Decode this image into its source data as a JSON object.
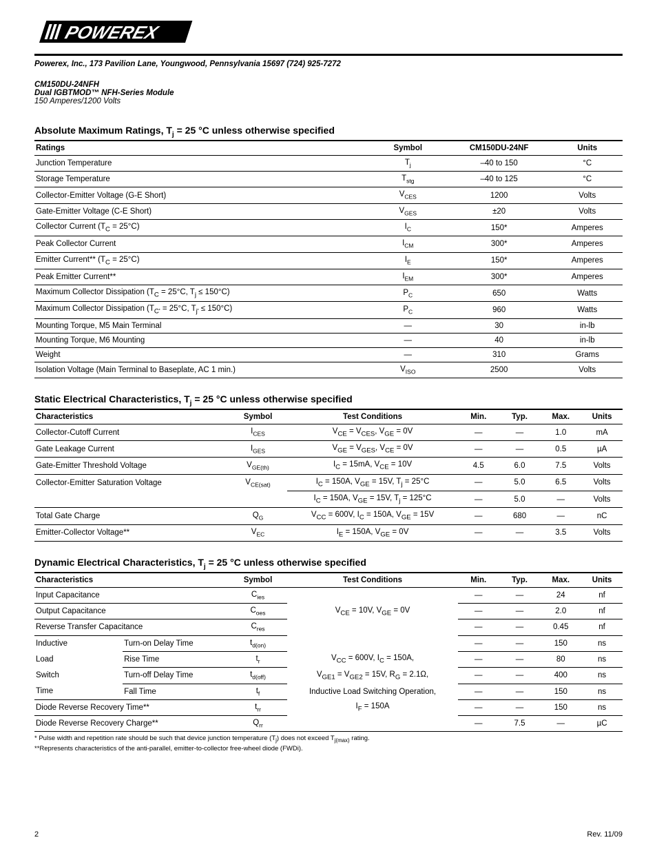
{
  "header": {
    "company_line": "Powerex, Inc., 173 Pavilion Lane, Youngwood, Pennsylvania  15697   (724) 925-7272",
    "product_code": "CM150DU-24NFH",
    "product_desc": "Dual IGBTMOD™ NFH-Series Module",
    "product_spec": "150 Amperes/1200 Volts"
  },
  "abs_max": {
    "title_prefix": "Absolute Maximum Ratings, T",
    "title_sub": "j",
    "title_suffix": " = 25 °C unless otherwise specified",
    "columns": {
      "c1": "Ratings",
      "c2": "Symbol",
      "c3": "CM150DU-24NF",
      "c4": "Units"
    },
    "rows": [
      {
        "rating": "Junction Temperature",
        "sym": "T",
        "sub": "j",
        "val": "–40 to 150",
        "unit": "°C"
      },
      {
        "rating": "Storage Temperature",
        "sym": "T",
        "sub": "stg",
        "val": "–40 to 125",
        "unit": "°C"
      },
      {
        "rating": "Collector-Emitter Voltage (G-E Short)",
        "sym": "V",
        "sub": "CES",
        "val": "1200",
        "unit": "Volts"
      },
      {
        "rating": "Gate-Emitter Voltage (C-E Short)",
        "sym": "V",
        "sub": "GES",
        "val": "±20",
        "unit": "Volts"
      },
      {
        "rating_html": "Collector Current (T<sub>C</sub> = 25°C)",
        "sym": "I",
        "sub": "C",
        "val": "150*",
        "unit": "Amperes"
      },
      {
        "rating": "Peak Collector Current",
        "sym": "I",
        "sub": "CM",
        "val": "300*",
        "unit": "Amperes"
      },
      {
        "rating_html": "Emitter Current** (T<sub>C</sub> = 25°C)",
        "sym": "I",
        "sub": "E",
        "val": "150*",
        "unit": "Amperes"
      },
      {
        "rating": "Peak Emitter Current**",
        "sym": "I",
        "sub": "EM",
        "val": "300*",
        "unit": "Amperes"
      },
      {
        "rating_html": "Maximum Collector Dissipation (T<sub>C</sub> = 25°C, T<sub>j</sub> ≤ 150°C)",
        "sym": "P",
        "sub": "C",
        "val": "650",
        "unit": "Watts"
      },
      {
        "rating_html": "Maximum Collector Dissipation (T<sub>C'</sub> = 25°C, T<sub>j'</sub> ≤ 150°C)",
        "sym": "P",
        "sub": "C",
        "val": "960",
        "unit": "Watts"
      },
      {
        "rating": "Mounting Torque, M5 Main Terminal",
        "sym": "—",
        "sub": "",
        "val": "30",
        "unit": "in-lb"
      },
      {
        "rating": "Mounting Torque, M6 Mounting",
        "sym": "—",
        "sub": "",
        "val": "40",
        "unit": "in-lb"
      },
      {
        "rating": "Weight",
        "sym": "—",
        "sub": "",
        "val": "310",
        "unit": "Grams"
      },
      {
        "rating": "Isolation Voltage (Main Terminal to Baseplate, AC 1 min.)",
        "sym": "V",
        "sub": "ISO",
        "val": "2500",
        "unit": "Volts"
      }
    ]
  },
  "static": {
    "title_prefix": "Static Electrical Characteristics, T",
    "title_sub": "j",
    "title_suffix": " = 25 °C unless otherwise specified",
    "columns": {
      "c1": "Characteristics",
      "c2": "Symbol",
      "c3": "Test Conditions",
      "c4": "Min.",
      "c5": "Typ.",
      "c6": "Max.",
      "c7": "Units"
    },
    "rows": [
      {
        "char": "Collector-Cutoff Current",
        "sym": "I",
        "sub": "CES",
        "cond_html": "V<sub>CE</sub> = V<sub>CES</sub>, V<sub>GE</sub> = 0V",
        "min": "—",
        "typ": "—",
        "max": "1.0",
        "unit": "mA"
      },
      {
        "char": "Gate Leakage Current",
        "sym": "I",
        "sub": "GES",
        "cond_html": "V<sub>GE</sub> = V<sub>GES</sub>, V<sub>CE</sub> = 0V",
        "min": "—",
        "typ": "—",
        "max": "0.5",
        "unit": "µA"
      },
      {
        "char": "Gate-Emitter Threshold Voltage",
        "sym": "V",
        "sub": "GE(th)",
        "cond_html": "I<sub>C</sub> = 15mA, V<sub>CE</sub> = 10V",
        "min": "4.5",
        "typ": "6.0",
        "max": "7.5",
        "unit": "Volts"
      },
      {
        "char": "Collector-Emitter Saturation Voltage",
        "sym": "V",
        "sub": "CE(sat)",
        "cond_html": "I<sub>C</sub> = 150A, V<sub>GE</sub> = 15V, T<sub>j</sub> = 25°C",
        "min": "—",
        "typ": "5.0",
        "max": "6.5",
        "unit": "Volts"
      },
      {
        "char": "",
        "sym": "",
        "sub": "",
        "cond_html": "I<sub>C</sub> = 150A, V<sub>GE</sub> = 15V, T<sub>j</sub> = 125°C",
        "min": "—",
        "typ": "5.0",
        "max": "—",
        "unit": "Volts"
      },
      {
        "char": "Total Gate Charge",
        "sym": "Q",
        "sub": "G",
        "cond_html": "V<sub>CC</sub> = 600V, I<sub>C</sub> = 150A, V<sub>GE</sub> = 15V",
        "min": "—",
        "typ": "680",
        "max": "—",
        "unit": "nC"
      },
      {
        "char": "Emitter-Collector Voltage**",
        "sym": "V",
        "sub": "EC",
        "cond_html": "I<sub>E</sub> = 150A, V<sub>GE</sub> = 0V",
        "min": "—",
        "typ": "—",
        "max": "3.5",
        "unit": "Volts"
      }
    ]
  },
  "dynamic": {
    "title_prefix": "Dynamic Electrical Characteristics, T",
    "title_sub": "j",
    "title_suffix": " = 25 °C unless otherwise specified",
    "columns": {
      "c1": "Characteristics",
      "c2": "Symbol",
      "c3": "Test Conditions",
      "c4": "Min.",
      "c5": "Typ.",
      "c6": "Max.",
      "c7": "Units"
    },
    "cond1_html": "V<sub>CE</sub> = 10V, V<sub>GE</sub> = 0V",
    "cond2a_html": "V<sub>CC</sub> = 600V, I<sub>C</sub> = 150A,",
    "cond2b_html": "V<sub>GE1</sub> = V<sub>GE2</sub> = 15V, R<sub>G</sub> = 2.1Ω,",
    "cond2c": "Inductive Load Switching Operation,",
    "cond2d_html": "I<sub>F</sub> = 150A",
    "rows": {
      "r1": {
        "char": "Input Capacitance",
        "sym": "C",
        "sub": "ies",
        "min": "—",
        "typ": "—",
        "max": "24",
        "unit": "nf"
      },
      "r2": {
        "char": "Output Capacitance",
        "sym": "C",
        "sub": "oes",
        "min": "—",
        "typ": "—",
        "max": "2.0",
        "unit": "nf"
      },
      "r3": {
        "char": "Reverse Transfer Capacitance",
        "sym": "C",
        "sub": "res",
        "min": "—",
        "typ": "—",
        "max": "0.45",
        "unit": "nf"
      },
      "r4": {
        "g": "Inductive",
        "char": "Turn-on Delay Time",
        "sym": "t",
        "sub": "d(on)",
        "min": "—",
        "typ": "—",
        "max": "150",
        "unit": "ns"
      },
      "r5": {
        "g": "Load",
        "char": "Rise Time",
        "sym": "t",
        "sub": "r",
        "min": "—",
        "typ": "—",
        "max": "80",
        "unit": "ns"
      },
      "r6": {
        "g": "Switch",
        "char": "Turn-off Delay Time",
        "sym": "t",
        "sub": "d(off)",
        "min": "—",
        "typ": "—",
        "max": "400",
        "unit": "ns"
      },
      "r7": {
        "g": "Time",
        "char": "Fall Time",
        "sym": "t",
        "sub": "f",
        "min": "—",
        "typ": "—",
        "max": "150",
        "unit": "ns"
      },
      "r8": {
        "char": "Diode Reverse Recovery Time**",
        "sym": "t",
        "sub": "rr",
        "min": "—",
        "typ": "—",
        "max": "150",
        "unit": "ns"
      },
      "r9": {
        "char": "Diode Reverse Recovery Charge**",
        "sym": "Q",
        "sub": "rr",
        "min": "—",
        "typ": "7.5",
        "max": "—",
        "unit": "µC"
      }
    }
  },
  "footnotes": {
    "f1_html": "* Pulse width and repetition rate should be such that device junction temperature (T<sub>j</sub>) does not exceed T<sub>j(max)</sub> rating.",
    "f2": "**Represents characteristics of the anti-parallel, emitter-to-collector free-wheel diode (FWDi)."
  },
  "footer": {
    "page": "2",
    "rev": "Rev. 11/09"
  }
}
